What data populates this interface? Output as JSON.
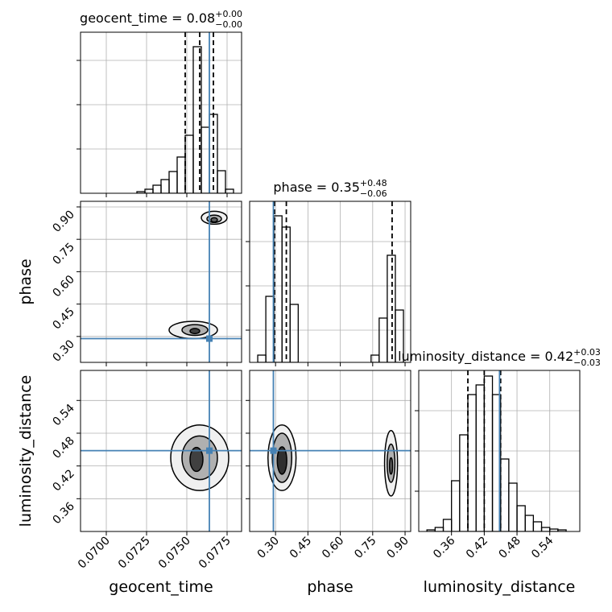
{
  "chart_data": [
    {
      "type": "histogram",
      "title": "geocent_time = 0.08",
      "title_upper": "+0.00",
      "title_lower": "−0.00",
      "bins": [
        0.0719,
        0.0724,
        0.0729,
        0.0734,
        0.0739,
        0.0744,
        0.0749,
        0.0754,
        0.0759,
        0.0764,
        0.0769,
        0.0774,
        0.0779
      ],
      "values": [
        2,
        5,
        10,
        17,
        27,
        45,
        72,
        182,
        82,
        98,
        28,
        5
      ],
      "xlim": [
        0.0684,
        0.0784
      ],
      "ylim": [
        0,
        200
      ],
      "xticks": [
        0.07,
        0.0725,
        0.075,
        0.0775
      ],
      "yticks": [
        55,
        110,
        165
      ],
      "quantiles": [
        0.0749,
        0.0758,
        0.07665
      ],
      "truth": 0.0764,
      "color": "#000000",
      "truth_color": "#4682b4",
      "grid": true
    },
    {
      "type": "contour",
      "ylabel": "phase",
      "xlim": [
        0.0684,
        0.0784
      ],
      "ylim": [
        0.18,
        0.926
      ],
      "xticks": [
        0.07,
        0.0725,
        0.075,
        0.0775
      ],
      "yticks": [
        {
          "value": 0.3,
          "label": "0.30"
        },
        0.45,
        {
          "value": 0.6,
          "label": "0.60"
        },
        0.75,
        {
          "value": 0.9,
          "label": "0.90"
        }
      ],
      "contours": [
        {
          "x": 0.0767,
          "y": 0.85,
          "rx": 0.0008,
          "ry": 0.03,
          "color": "#f0f0f0"
        },
        {
          "x": 0.0767,
          "y": 0.845,
          "rx": 0.00045,
          "ry": 0.017,
          "color": "#b0b0b0"
        },
        {
          "x": 0.0767,
          "y": 0.84,
          "rx": 0.0002,
          "ry": 0.01,
          "color": "#606060"
        },
        {
          "x": 0.0754,
          "y": 0.33,
          "rx": 0.0015,
          "ry": 0.04,
          "color": "#f0f0f0"
        },
        {
          "x": 0.0755,
          "y": 0.33,
          "rx": 0.0008,
          "ry": 0.025,
          "color": "#b0b0b0"
        },
        {
          "x": 0.0755,
          "y": 0.325,
          "rx": 0.0003,
          "ry": 0.012,
          "color": "#404040"
        }
      ],
      "truth_x": 0.0764,
      "truth_y": 0.29,
      "truth_color": "#4682b4",
      "grid": true
    },
    {
      "type": "histogram",
      "title": "phase = 0.35",
      "title_upper": "+0.48",
      "title_lower": "−0.06",
      "bins": [
        0.2175,
        0.255,
        0.2925,
        0.33,
        0.3675,
        0.405,
        0.4425,
        0.48,
        0.5175,
        0.555,
        0.5925,
        0.63,
        0.6675,
        0.705,
        0.7425,
        0.78,
        0.8175,
        0.855,
        0.8925
      ],
      "values": [
        9,
        82,
        182,
        168,
        72,
        0,
        0,
        0,
        0,
        0,
        0,
        0,
        0,
        0,
        9,
        55,
        133,
        65
      ],
      "xlim": [
        0.18,
        0.926
      ],
      "ylim": [
        0,
        200
      ],
      "xticks": [
        0.3,
        0.45,
        0.6,
        0.75,
        0.9
      ],
      "yticks": [
        40,
        95,
        150
      ],
      "quantiles": [
        0.295,
        0.35,
        0.84
      ],
      "truth": 0.29,
      "color": "#000000",
      "truth_color": "#4682b4",
      "grid": true
    },
    {
      "type": "contour",
      "xlabel": "geocent_time",
      "ylabel": "luminosity_distance",
      "xlim": [
        0.0684,
        0.0784
      ],
      "ylim": [
        0.3,
        0.595
      ],
      "xticks": [
        {
          "value": 0.07,
          "label": "0.0700"
        },
        0.0725,
        {
          "value": 0.075,
          "label": "0.0750"
        },
        0.0775
      ],
      "yticks": [
        0.36,
        0.42,
        0.48,
        0.54
      ],
      "contours": [
        {
          "x": 0.0758,
          "y": 0.435,
          "rx": 0.0018,
          "ry": 0.06,
          "color": "#f0f0f0"
        },
        {
          "x": 0.0758,
          "y": 0.435,
          "rx": 0.0011,
          "ry": 0.04,
          "color": "#b0b0b0"
        },
        {
          "x": 0.0756,
          "y": 0.432,
          "rx": 0.0004,
          "ry": 0.022,
          "color": "#404040"
        }
      ],
      "truth_x": 0.0764,
      "truth_y": 0.448,
      "truth_color": "#4682b4",
      "grid": true
    },
    {
      "type": "contour",
      "xlabel": "phase",
      "xlim": [
        0.18,
        0.926
      ],
      "ylim": [
        0.3,
        0.595
      ],
      "xticks": [
        {
          "value": 0.3,
          "label": "0.30"
        },
        0.45,
        {
          "value": 0.6,
          "label": "0.60"
        },
        0.75,
        {
          "value": 0.9,
          "label": "0.90"
        }
      ],
      "yticks": [
        0.36,
        0.42,
        0.48,
        0.54
      ],
      "contours": [
        {
          "x": 0.33,
          "y": 0.435,
          "rx": 0.065,
          "ry": 0.06,
          "color": "#f0f0f0"
        },
        {
          "x": 0.33,
          "y": 0.435,
          "rx": 0.045,
          "ry": 0.045,
          "color": "#b0b0b0"
        },
        {
          "x": 0.33,
          "y": 0.43,
          "rx": 0.022,
          "ry": 0.025,
          "color": "#303030"
        },
        {
          "x": 0.835,
          "y": 0.425,
          "rx": 0.03,
          "ry": 0.06,
          "color": "#f0f0f0"
        },
        {
          "x": 0.835,
          "y": 0.425,
          "rx": 0.018,
          "ry": 0.035,
          "color": "#b0b0b0"
        },
        {
          "x": 0.835,
          "y": 0.42,
          "rx": 0.007,
          "ry": 0.015,
          "color": "#606060"
        }
      ],
      "truth_x": 0.29,
      "truth_y": 0.448,
      "truth_color": "#4682b4",
      "grid": true
    },
    {
      "type": "histogram",
      "title": "luminosity_distance = 0.42",
      "title_upper": "+0.03",
      "title_lower": "−0.03",
      "xlabel": "luminosity_distance",
      "bins": [
        0.315,
        0.33,
        0.345,
        0.36,
        0.375,
        0.39,
        0.405,
        0.42,
        0.435,
        0.45,
        0.465,
        0.48,
        0.495,
        0.51,
        0.525,
        0.54,
        0.555,
        0.57
      ],
      "values": [
        2,
        5,
        15,
        63,
        120,
        170,
        182,
        193,
        170,
        90,
        60,
        32,
        20,
        12,
        5,
        3,
        2
      ],
      "xlim": [
        0.3,
        0.595
      ],
      "ylim": [
        0,
        200
      ],
      "xticks": [
        0.36,
        0.42,
        0.48,
        0.54
      ],
      "yticks": [
        50,
        100,
        150
      ],
      "quantiles": [
        0.39,
        0.42,
        0.45
      ],
      "truth": 0.448,
      "color": "#000000",
      "truth_color": "#4682b4",
      "grid": true
    }
  ]
}
